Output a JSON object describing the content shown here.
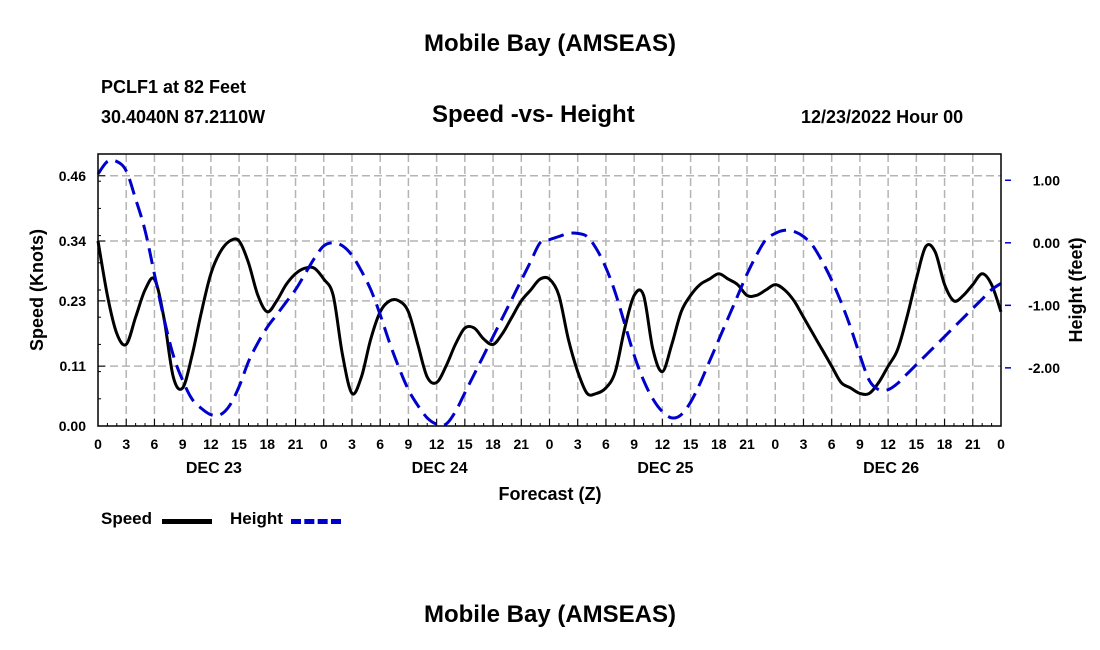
{
  "header": {
    "title": "Mobile Bay (AMSEAS)",
    "station": "PCLF1 at 82 Feet",
    "coords": "30.4040N  87.2110W",
    "chart_title": "Speed -vs- Height",
    "date": "12/23/2022 Hour 00"
  },
  "footer": {
    "title": "Mobile Bay (AMSEAS)"
  },
  "legend": {
    "speed_label": "Speed",
    "height_label": "Height"
  },
  "colors": {
    "speed": "#000000",
    "height": "#0000cc",
    "grid": "#b4b4b4"
  },
  "chart_data": {
    "type": "line",
    "title": "Speed -vs- Height",
    "xlabel": "Forecast (Z)",
    "ylabel": "Speed (Knots)",
    "y2label": "Height (feet)",
    "xlim": [
      0,
      96
    ],
    "ylim": [
      0,
      0.5
    ],
    "y2lim": [
      -2.93,
      1.42
    ],
    "yticks": [
      0.0,
      0.11,
      0.23,
      0.34,
      0.46
    ],
    "ytick_labels": [
      "0.00",
      "0.11",
      "0.23",
      "0.34",
      "0.46"
    ],
    "y2ticks": [
      1,
      0,
      -1,
      -2
    ],
    "y2tick_labels": [
      "1.00",
      "0.00",
      "-1.00",
      "-2.00"
    ],
    "xtick_labels": [
      "0",
      "3",
      "6",
      "9",
      "12",
      "15",
      "18",
      "21",
      "0",
      "3",
      "6",
      "9",
      "12",
      "15",
      "18",
      "21",
      "0",
      "3",
      "6",
      "9",
      "12",
      "15",
      "18",
      "21",
      "0",
      "3",
      "6",
      "9",
      "12",
      "15",
      "18",
      "21",
      "0"
    ],
    "day_labels": [
      {
        "label": "DEC 23",
        "hour": 12
      },
      {
        "label": "DEC 24",
        "hour": 36
      },
      {
        "label": "DEC 25",
        "hour": 60
      },
      {
        "label": "DEC 26",
        "hour": 84
      }
    ],
    "grid": true,
    "legend_position": "bottom-left",
    "series": [
      {
        "name": "Speed",
        "axis": "left",
        "style": "solid",
        "x": [
          0,
          1,
          2,
          3,
          4,
          5,
          6,
          7,
          8,
          9,
          10,
          11,
          12,
          13,
          14,
          15,
          16,
          17,
          18,
          19,
          20,
          21,
          22,
          23,
          24,
          25,
          26,
          27,
          28,
          29,
          30,
          31,
          32,
          33,
          34,
          35,
          36,
          37,
          38,
          39,
          40,
          41,
          42,
          43,
          44,
          45,
          46,
          47,
          48,
          49,
          50,
          51,
          52,
          53,
          54,
          55,
          56,
          57,
          58,
          59,
          60,
          61,
          62,
          63,
          64,
          65,
          66,
          67,
          68,
          69,
          70,
          71,
          72,
          73,
          74,
          75,
          76,
          77,
          78,
          79,
          80,
          81,
          82,
          83,
          84,
          85,
          86,
          87,
          88,
          89,
          90,
          91,
          92,
          93,
          94,
          95,
          96
        ],
        "values": [
          0.34,
          0.24,
          0.17,
          0.15,
          0.2,
          0.25,
          0.27,
          0.2,
          0.09,
          0.07,
          0.13,
          0.21,
          0.28,
          0.32,
          0.34,
          0.34,
          0.3,
          0.24,
          0.21,
          0.23,
          0.26,
          0.28,
          0.29,
          0.29,
          0.27,
          0.24,
          0.13,
          0.06,
          0.09,
          0.16,
          0.21,
          0.23,
          0.23,
          0.21,
          0.15,
          0.09,
          0.08,
          0.11,
          0.15,
          0.18,
          0.18,
          0.16,
          0.15,
          0.17,
          0.2,
          0.23,
          0.25,
          0.27,
          0.27,
          0.24,
          0.16,
          0.1,
          0.06,
          0.06,
          0.07,
          0.1,
          0.18,
          0.24,
          0.24,
          0.14,
          0.1,
          0.15,
          0.21,
          0.24,
          0.26,
          0.27,
          0.28,
          0.27,
          0.26,
          0.24,
          0.24,
          0.25,
          0.26,
          0.25,
          0.23,
          0.2,
          0.17,
          0.14,
          0.11,
          0.08,
          0.07,
          0.06,
          0.06,
          0.08,
          0.11,
          0.14,
          0.2,
          0.27,
          0.33,
          0.32,
          0.26,
          0.23,
          0.24,
          0.26,
          0.28,
          0.26,
          0.21
        ]
      },
      {
        "name": "Height",
        "axis": "right",
        "style": "dashed",
        "x": [
          0,
          1,
          2,
          3,
          4,
          5,
          6,
          7,
          8,
          9,
          10,
          11,
          12,
          13,
          14,
          15,
          16,
          17,
          18,
          19,
          20,
          21,
          22,
          23,
          24,
          25,
          26,
          27,
          28,
          29,
          30,
          31,
          32,
          33,
          34,
          35,
          36,
          37,
          38,
          39,
          40,
          41,
          42,
          43,
          44,
          45,
          46,
          47,
          48,
          49,
          50,
          51,
          52,
          53,
          54,
          55,
          56,
          57,
          58,
          59,
          60,
          61,
          62,
          63,
          64,
          65,
          66,
          67,
          68,
          69,
          70,
          71,
          72,
          73,
          74,
          75,
          76,
          77,
          78,
          79,
          80,
          81,
          82,
          83,
          84,
          85,
          86,
          87,
          88,
          89,
          90,
          91,
          92,
          93,
          94,
          95,
          96
        ],
        "values": [
          1.1,
          1.3,
          1.3,
          1.15,
          0.7,
          0.2,
          -0.5,
          -1.2,
          -1.8,
          -2.2,
          -2.5,
          -2.65,
          -2.75,
          -2.75,
          -2.6,
          -2.3,
          -1.9,
          -1.6,
          -1.35,
          -1.15,
          -0.95,
          -0.75,
          -0.5,
          -0.25,
          -0.05,
          0.0,
          -0.05,
          -0.2,
          -0.45,
          -0.75,
          -1.15,
          -1.6,
          -2.0,
          -2.35,
          -2.6,
          -2.8,
          -2.9,
          -2.9,
          -2.7,
          -2.4,
          -2.1,
          -1.8,
          -1.5,
          -1.2,
          -0.9,
          -0.6,
          -0.3,
          0.0,
          0.05,
          0.1,
          0.15,
          0.15,
          0.1,
          -0.1,
          -0.4,
          -0.8,
          -1.3,
          -1.8,
          -2.2,
          -2.5,
          -2.7,
          -2.8,
          -2.75,
          -2.55,
          -2.25,
          -1.9,
          -1.55,
          -1.2,
          -0.85,
          -0.5,
          -0.2,
          0.05,
          0.15,
          0.2,
          0.18,
          0.1,
          -0.05,
          -0.3,
          -0.6,
          -0.95,
          -1.35,
          -1.8,
          -2.2,
          -2.35,
          -2.35,
          -2.25,
          -2.1,
          -1.95,
          -1.8,
          -1.65,
          -1.5,
          -1.35,
          -1.2,
          -1.05,
          -0.9,
          -0.75,
          -0.65
        ]
      }
    ]
  }
}
